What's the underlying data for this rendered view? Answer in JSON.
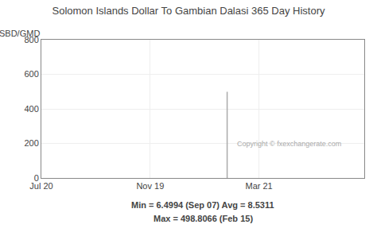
{
  "chart_data": {
    "type": "line",
    "title": "Solomon Islands Dollar To Gambian Dalasi 365 Day History",
    "ylabel": "SBD/GMD",
    "annotations": [
      "Copyright © fxexchangerate.com",
      "Min = 6.4994 (Sep 07) Avg = 8.5311",
      "Max = 498.8066 (Feb 15)"
    ],
    "x": [
      210,
      210
    ],
    "values": [
      0,
      498.8066
    ],
    "color": "#aaaaaa",
    "xlim": [
      0,
      365
    ],
    "xticks": [
      {
        "value": 0,
        "label": "Jul 20"
      },
      {
        "value": 123,
        "label": "Nov 19"
      },
      {
        "value": 246,
        "label": "Mar 21"
      }
    ],
    "ylim": [
      0,
      800
    ],
    "yticks": [
      0,
      200,
      400,
      600,
      800
    ],
    "grid": true
  }
}
